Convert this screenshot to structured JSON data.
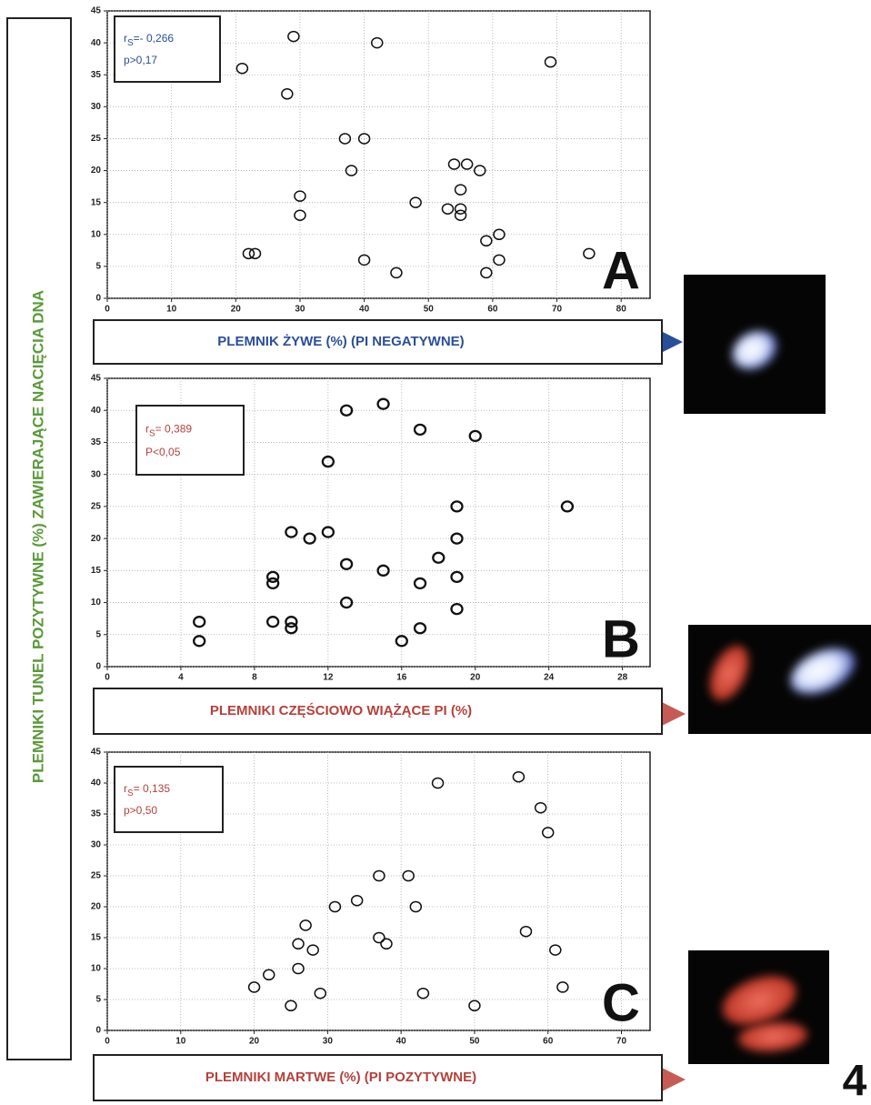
{
  "figure_label": "4",
  "y_axis_label": "PLEMNIKI TUNEL POZYTYWNE (%) ZAWIERAJĄCE NACIĘCIA DNA",
  "chart_data": [
    {
      "type": "scatter",
      "panel": "A",
      "x_label": "PLEMNIK ŻYWE (%) (PI NEGATYWNE)",
      "color": "#2a4f9a",
      "annotation": {
        "symbol": "r",
        "subscript": "S",
        "value": "=- 0,266",
        "p": "p>0,17"
      },
      "x": [
        21,
        29,
        42,
        69,
        28,
        37,
        40,
        38,
        54,
        56,
        58,
        30,
        48,
        55,
        53,
        55,
        55,
        30,
        59,
        61,
        22,
        23,
        75,
        40,
        61,
        45,
        59
      ],
      "y": [
        36,
        41,
        40,
        37,
        32,
        25,
        25,
        20,
        21,
        21,
        20,
        16,
        15,
        17,
        14,
        14,
        13,
        13,
        9,
        10,
        7,
        7,
        7,
        6,
        6,
        4,
        4
      ],
      "xlim": [
        0,
        84.5
      ],
      "ylim": [
        0,
        45
      ],
      "xticks": [
        0,
        10,
        20,
        30,
        40,
        50,
        60,
        70,
        80
      ],
      "yticks": [
        0,
        5,
        10,
        15,
        20,
        25,
        30,
        35,
        40,
        45
      ],
      "grid": true
    },
    {
      "type": "scatter",
      "panel": "B",
      "x_label": "PLEMNIKI CZĘŚCIOWO WIĄŻĄCE PI (%)",
      "color": "#b5413a",
      "annotation": {
        "symbol": "r",
        "subscript": "S",
        "value": "= 0,389",
        "p": "P<0,05"
      },
      "x": [
        13,
        15,
        17,
        20,
        12,
        19,
        25,
        10,
        11,
        12,
        19,
        13,
        15,
        18,
        9,
        9,
        17,
        19,
        13,
        19,
        5,
        9,
        10,
        10,
        17,
        5,
        16
      ],
      "y": [
        40,
        41,
        37,
        36,
        32,
        25,
        25,
        21,
        20,
        21,
        20,
        16,
        15,
        17,
        14,
        13,
        13,
        14,
        10,
        9,
        7,
        7,
        7,
        6,
        6,
        4,
        4
      ],
      "xlim": [
        0,
        29.5
      ],
      "ylim": [
        0,
        45
      ],
      "xticks": [
        0,
        4,
        8,
        12,
        16,
        20,
        24,
        28
      ],
      "yticks": [
        0,
        5,
        10,
        15,
        20,
        25,
        30,
        35,
        40,
        45
      ],
      "grid": true
    },
    {
      "type": "scatter",
      "panel": "C",
      "x_label": "PLEMNIKI MARTWE (%) (PI POZYTYWNE)",
      "color": "#b5413a",
      "annotation": {
        "symbol": "r",
        "subscript": "S",
        "value": "= 0,135",
        "p": "p>0,50"
      },
      "x": [
        45,
        56,
        59,
        60,
        37,
        41,
        31,
        34,
        42,
        27,
        57,
        37,
        38,
        26,
        28,
        61,
        22,
        26,
        20,
        29,
        43,
        62,
        25,
        50
      ],
      "y": [
        40,
        41,
        36,
        32,
        25,
        25,
        20,
        21,
        20,
        17,
        16,
        15,
        14,
        14,
        13,
        13,
        9,
        10,
        7,
        6,
        6,
        7,
        4,
        4
      ],
      "xlim": [
        0,
        73.9
      ],
      "ylim": [
        0,
        45
      ],
      "xticks": [
        0,
        10,
        20,
        30,
        40,
        50,
        60,
        70
      ],
      "yticks": [
        0,
        5,
        10,
        15,
        20,
        25,
        30,
        35,
        40,
        45
      ],
      "grid": true
    }
  ]
}
